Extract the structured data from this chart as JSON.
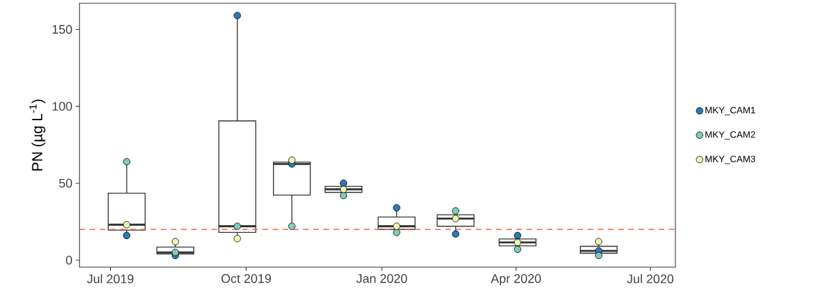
{
  "chart_data": {
    "type": "box",
    "ylabel": "PN (µg L$^{-1}$)",
    "x": [
      "2019-07-12",
      "2019-08-14",
      "2019-09-25",
      "2019-11-01",
      "2019-12-06",
      "2020-01-11",
      "2020-02-20",
      "2020-04-02",
      "2020-05-27"
    ],
    "boxes": [
      {
        "low": 16,
        "q1": 19.5,
        "median": 23,
        "q3": 43.5,
        "high": 64
      },
      {
        "low": 3,
        "q1": 4,
        "median": 5,
        "q3": 8.5,
        "high": 12
      },
      {
        "low": 14,
        "q1": 18,
        "median": 22,
        "q3": 90.5,
        "high": 159
      },
      {
        "low": 22,
        "q1": 42.25,
        "median": 62.5,
        "q3": 63.75,
        "high": 65
      },
      {
        "low": 42,
        "q1": 44,
        "median": 46,
        "q3": 48,
        "high": 50
      },
      {
        "low": 18,
        "q1": 20,
        "median": 22,
        "q3": 28,
        "high": 34
      },
      {
        "low": 17,
        "q1": 22,
        "median": 27,
        "q3": 29.5,
        "high": 32
      },
      {
        "low": 7,
        "q1": 9.25,
        "median": 11.5,
        "q3": 13.75,
        "high": 16
      },
      {
        "low": 3,
        "q1": 4.5,
        "median": 6,
        "q3": 9,
        "high": 12
      }
    ],
    "series": [
      {
        "type": "scatter",
        "name": "MKY_CAM1",
        "color": "#2b7bba",
        "values": [
          16,
          3,
          159,
          62.5,
          50,
          34,
          17,
          16,
          6
        ]
      },
      {
        "type": "scatter",
        "name": "MKY_CAM2",
        "color": "#7fcdbb",
        "values": [
          64,
          5,
          22,
          22,
          42,
          18,
          32,
          7,
          3
        ]
      },
      {
        "type": "scatter",
        "name": "MKY_CAM3",
        "color": "#edf8b1",
        "values": [
          23,
          12,
          14,
          65,
          46,
          22,
          27,
          11.5,
          12
        ]
      }
    ],
    "marker": "circle",
    "legend": "right",
    "ref_lines": [
      {
        "axis": "y",
        "value": 20,
        "color": "#f4604a",
        "line_style": "dashed"
      }
    ],
    "xlim": [
      "2019-06-10",
      "2020-07-18"
    ],
    "xticks": [
      {
        "value": "2019-07",
        "label": "Jul 2019"
      },
      {
        "value": "2019-10",
        "label": "Oct 2019"
      },
      {
        "value": "2020-01",
        "label": "Jan 2020"
      },
      {
        "value": "2020-04",
        "label": "Apr 2020"
      },
      {
        "value": "2020-07",
        "label": "Jul 2020"
      }
    ],
    "ylim": [
      -4.6,
      167
    ],
    "yticks": [
      0,
      50,
      100,
      150
    ]
  }
}
